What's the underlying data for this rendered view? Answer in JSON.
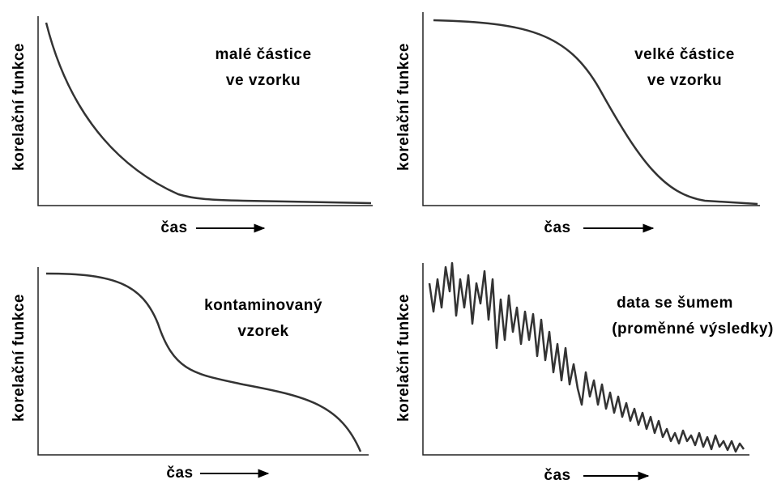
{
  "panels": [
    {
      "y_label": "korelační funkce",
      "x_label": "čas",
      "annotation": [
        "malé částice",
        "ve vzorku"
      ]
    },
    {
      "y_label": "korelační funkce",
      "x_label": "čas",
      "annotation": [
        "velké částice",
        "ve vzorku"
      ]
    },
    {
      "y_label": "korelační funkce",
      "x_label": "čas",
      "annotation": [
        "kontaminovaný",
        "vzorek"
      ]
    },
    {
      "y_label": "korelační funkce",
      "x_label": "čas",
      "annotation": [
        "data se šumem",
        "(proměnné výsledky)"
      ]
    }
  ]
}
